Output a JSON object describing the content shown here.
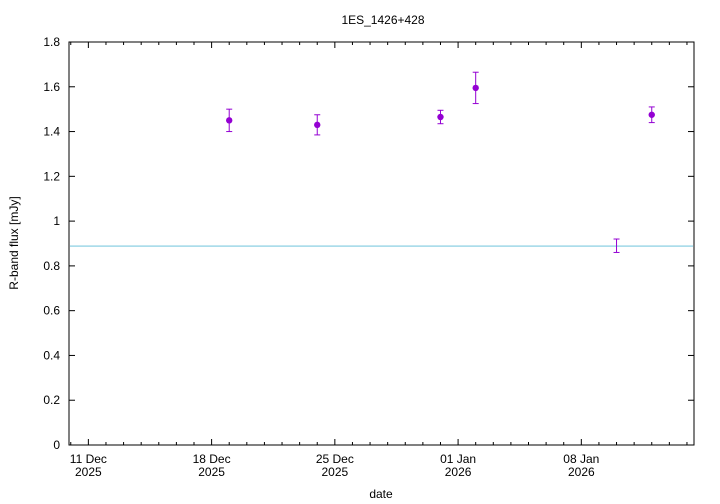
{
  "chart_data": {
    "type": "scatter",
    "title": "1ES_1426+428",
    "xlabel": "date",
    "ylabel": "R-band flux [mJy]",
    "xlim": [
      "2025-12-10",
      "2026-01-14"
    ],
    "ylim": [
      0,
      1.8
    ],
    "y_ticks": [
      "0",
      "0.2",
      "0.4",
      "0.6",
      "0.8",
      "1",
      "1.2",
      "1.4",
      "1.6",
      "1.8"
    ],
    "x_ticks": [
      {
        "date": "2025-12-11",
        "label_line1": "11 Dec",
        "label_line2": "2025"
      },
      {
        "date": "2025-12-18",
        "label_line1": "18 Dec",
        "label_line2": "2025"
      },
      {
        "date": "2025-12-25",
        "label_line1": "25 Dec",
        "label_line2": "2025"
      },
      {
        "date": "2026-01-01",
        "label_line1": "01 Jan",
        "label_line2": "2026"
      },
      {
        "date": "2026-01-08",
        "label_line1": "08 Jan",
        "label_line2": "2026"
      }
    ],
    "grid": false,
    "legend": "none",
    "series": [
      {
        "color": "#9400d3",
        "points": [
          {
            "x": "2025-12-19",
            "y": 1.45,
            "yerr": 0.05
          },
          {
            "x": "2025-12-24",
            "y": 1.43,
            "yerr": 0.045
          },
          {
            "x": "2025-12-31",
            "y": 1.465,
            "yerr": 0.03
          },
          {
            "x": "2026-01-02",
            "y": 1.595,
            "yerr": 0.07
          },
          {
            "x": "2026-01-12",
            "y": 1.475,
            "yerr": 0.035
          }
        ]
      },
      {
        "color": "#9400d3",
        "errorbar_only": true,
        "points": [
          {
            "x": "2026-01-10",
            "y": 0.89,
            "yerr": 0.03
          }
        ]
      }
    ],
    "reference_line": {
      "y": 0.888,
      "color": "#9fd8e8"
    }
  }
}
